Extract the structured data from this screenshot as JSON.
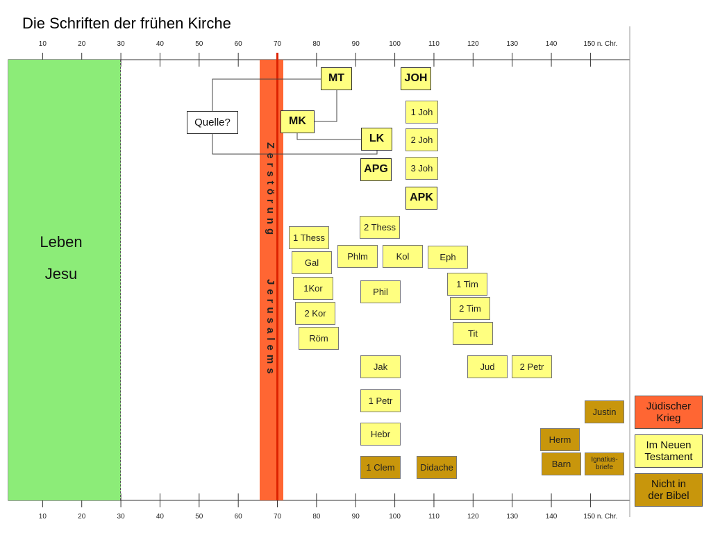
{
  "title": "Die Schriften der frühen Kirche",
  "axis": {
    "ticks": [
      "10",
      "20",
      "30",
      "40",
      "50",
      "60",
      "70",
      "80",
      "90",
      "100",
      "110",
      "120",
      "130",
      "140",
      "150 n. Chr."
    ],
    "min": 0,
    "max": 160
  },
  "periods": {
    "leben_jesu": {
      "line1": "Leben",
      "line2": "Jesu",
      "from": 0,
      "to": 30,
      "color": "#8cec78"
    },
    "zerstoerung": {
      "word1": "Zerstörung",
      "word2": "Jerusalems",
      "year": 70,
      "from": 66,
      "to": 72,
      "band_color": "#ff6633",
      "line_color": "#dd2200"
    }
  },
  "colors": {
    "in_nt": "#ffff80",
    "not_in_bible": "#c8960c",
    "judischer_krieg": "#ff6633"
  },
  "writings": {
    "mt": "MT",
    "joh": "JOH",
    "joh1": "1 Joh",
    "joh2": "2 Joh",
    "joh3": "3 Joh",
    "quelle": "Quelle?",
    "mk": "MK",
    "lk": "LK",
    "apg": "APG",
    "apk": "APK",
    "thess2": "2 Thess",
    "thess1": "1 Thess",
    "phlm": "Phlm",
    "kol": "Kol",
    "eph": "Eph",
    "gal": "Gal",
    "kor1": "1Kor",
    "phil": "Phil",
    "tim1": "1 Tim",
    "kor2": "2 Kor",
    "tim2": "2 Tim",
    "rom": "Röm",
    "tit": "Tit",
    "jak": "Jak",
    "jud": "Jud",
    "petr2": "2 Petr",
    "petr1": "1 Petr",
    "hebr": "Hebr",
    "justin": "Justin",
    "herm": "Herm",
    "clem1": "1 Clem",
    "didache": "Didache",
    "barn": "Barn",
    "ignatius1": "Ignatius-",
    "ignatius2": "briefe"
  },
  "legend": {
    "krieg1": "Jüdischer",
    "krieg2": "Krieg",
    "nt1": "Im Neuen",
    "nt2": "Testament",
    "nb1": "Nicht in",
    "nb2": "der Bibel"
  }
}
